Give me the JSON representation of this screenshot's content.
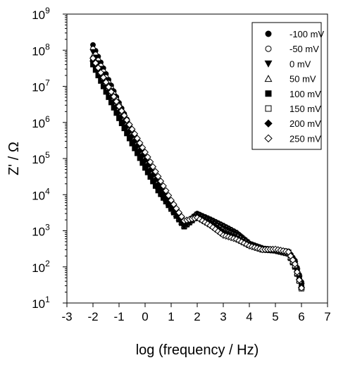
{
  "chart_data": {
    "type": "scatter",
    "title": "",
    "xlabel": "log (frequency / Hz)",
    "ylabel": "Z' / Ω",
    "xlim": [
      -3,
      7
    ],
    "ylim_log10": [
      1,
      9
    ],
    "y_scale": "log",
    "grid": false,
    "legend_position": "top-right",
    "x_ticks": [
      "-3",
      "-2",
      "-1",
      "0",
      "1",
      "2",
      "3",
      "4",
      "5",
      "6",
      "7"
    ],
    "y_ticks": [
      {
        "base": "10",
        "exp": "1"
      },
      {
        "base": "10",
        "exp": "2"
      },
      {
        "base": "10",
        "exp": "3"
      },
      {
        "base": "10",
        "exp": "4"
      },
      {
        "base": "10",
        "exp": "5"
      },
      {
        "base": "10",
        "exp": "6"
      },
      {
        "base": "10",
        "exp": "7"
      },
      {
        "base": "10",
        "exp": "8"
      },
      {
        "base": "10",
        "exp": "9"
      }
    ],
    "x": [
      -2.0,
      -1.5,
      -1.0,
      -0.5,
      0.0,
      0.5,
      1.0,
      1.5,
      2.0,
      2.5,
      3.0,
      3.5,
      4.0,
      4.5,
      5.0,
      5.5,
      5.75,
      6.0
    ],
    "series": [
      {
        "name": "-100 mV",
        "marker": "circle-filled",
        "values": [
          140000000.0,
          22000000.0,
          3500000.0,
          600000.0,
          110000.0,
          22000.0,
          5500.0,
          1500.0,
          3000.0,
          2100.0,
          1400.0,
          900.0,
          450.0,
          330.0,
          300.0,
          270.0,
          150.0,
          38.0
        ]
      },
      {
        "name": "-50 mV",
        "marker": "circle-open",
        "values": [
          110000000.0,
          18000000.0,
          3000000.0,
          520000.0,
          100000.0,
          20000.0,
          5200.0,
          1500.0,
          2900.0,
          2000.0,
          1300.0,
          850.0,
          430.0,
          320.0,
          300.0,
          260.0,
          130.0,
          32.0
        ]
      },
      {
        "name": "0 mV",
        "marker": "triangle-down-filled",
        "values": [
          90000000.0,
          15000000.0,
          2600000.0,
          460000.0,
          90000.0,
          18000.0,
          4800.0,
          1400.0,
          2800.0,
          1900.0,
          1200.0,
          800.0,
          420.0,
          320.0,
          290.0,
          250.0,
          120.0,
          30.0
        ]
      },
      {
        "name": "50 mV",
        "marker": "triangle-up-open",
        "values": [
          70000000.0,
          13000000.0,
          2400000.0,
          430000.0,
          85000.0,
          17000.0,
          4600.0,
          1400.0,
          2700.0,
          1800.0,
          1100.0,
          760.0,
          410.0,
          310.0,
          290.0,
          240.0,
          110.0,
          28.0
        ]
      },
      {
        "name": "100 mV",
        "marker": "square-filled",
        "values": [
          40000000.0,
          7000000.0,
          1300000.0,
          260000.0,
          55000.0,
          13000.0,
          4000.0,
          1300.0,
          2500.0,
          1700.0,
          950.0,
          700.0,
          400.0,
          300.0,
          280.0,
          230.0,
          100.0,
          26.0
        ]
      },
      {
        "name": "150 mV",
        "marker": "square-open",
        "values": [
          55000000.0,
          11000000.0,
          2200000.0,
          450000.0,
          95000.0,
          20000.0,
          5000.0,
          1400.0,
          2600.0,
          1700.0,
          950.0,
          680.0,
          400.0,
          300.0,
          290.0,
          240.0,
          110.0,
          25.0
        ]
      },
      {
        "name": "200 mV",
        "marker": "diamond-filled",
        "values": [
          50000000.0,
          10000000.0,
          2000000.0,
          420000.0,
          90000.0,
          19000.0,
          4900.0,
          1400.0,
          2600.0,
          1700.0,
          900.0,
          650.0,
          400.0,
          300.0,
          290.0,
          250.0,
          120.0,
          27.0
        ]
      },
      {
        "name": "250 mV",
        "marker": "diamond-open",
        "values": [
          60000000.0,
          13000000.0,
          2800000.0,
          650000.0,
          150000.0,
          32000.0,
          7000.0,
          1900.0,
          2300.0,
          1400.0,
          750.0,
          580.0,
          380.0,
          300.0,
          310.0,
          260.0,
          120.0,
          26.0
        ]
      }
    ]
  }
}
